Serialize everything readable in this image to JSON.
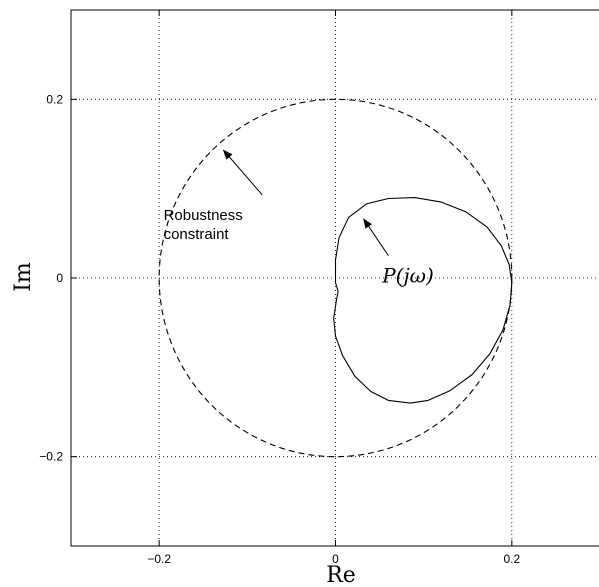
{
  "chart_data": {
    "type": "line",
    "title": "",
    "xlabel": "Re",
    "ylabel": "Im",
    "xlim": [
      -0.3,
      0.3
    ],
    "ylim": [
      -0.3,
      0.3
    ],
    "grid": true,
    "xticks": [
      -0.2,
      0,
      0.2
    ],
    "xtick_labels": [
      "−0.2",
      "0",
      "0.2"
    ],
    "yticks": [
      -0.2,
      0,
      0.2
    ],
    "ytick_labels": [
      "−0.2",
      "0",
      "0.2"
    ],
    "series": [
      {
        "name": "Robustness constraint",
        "style": "dashed",
        "shape": "circle",
        "center": [
          0,
          0
        ],
        "radius": 0.2
      },
      {
        "name": "P(jω)",
        "style": "solid",
        "points": [
          [
            0.0,
            0.0
          ],
          [
            0.0,
            0.02
          ],
          [
            0.004,
            0.045
          ],
          [
            0.015,
            0.068
          ],
          [
            0.035,
            0.083
          ],
          [
            0.06,
            0.089
          ],
          [
            0.09,
            0.09
          ],
          [
            0.12,
            0.085
          ],
          [
            0.148,
            0.074
          ],
          [
            0.172,
            0.057
          ],
          [
            0.188,
            0.036
          ],
          [
            0.197,
            0.015
          ],
          [
            0.2,
            -0.005
          ],
          [
            0.198,
            -0.03
          ],
          [
            0.19,
            -0.058
          ],
          [
            0.175,
            -0.085
          ],
          [
            0.155,
            -0.108
          ],
          [
            0.13,
            -0.126
          ],
          [
            0.105,
            -0.137
          ],
          [
            0.085,
            -0.14
          ],
          [
            0.06,
            -0.137
          ],
          [
            0.04,
            -0.127
          ],
          [
            0.022,
            -0.11
          ],
          [
            0.008,
            -0.087
          ],
          [
            0.0,
            -0.065
          ],
          [
            -0.002,
            -0.045
          ],
          [
            0.001,
            -0.025
          ],
          [
            0.003,
            -0.015
          ],
          [
            0.0,
            -0.005
          ],
          [
            0.0,
            0.0
          ]
        ]
      }
    ],
    "annotations": [
      {
        "lines": [
          "Robustness",
          "constraint"
        ],
        "text_at": [
          -0.195,
          0.065
        ],
        "arrow_from": [
          -0.083,
          0.093
        ],
        "arrow_to": [
          -0.127,
          0.143
        ]
      },
      {
        "text": "P(jω)",
        "text_at": [
          0.053,
          -0.005
        ],
        "arrow_from": [
          0.06,
          0.025
        ],
        "arrow_to": [
          0.032,
          0.066
        ]
      }
    ]
  }
}
